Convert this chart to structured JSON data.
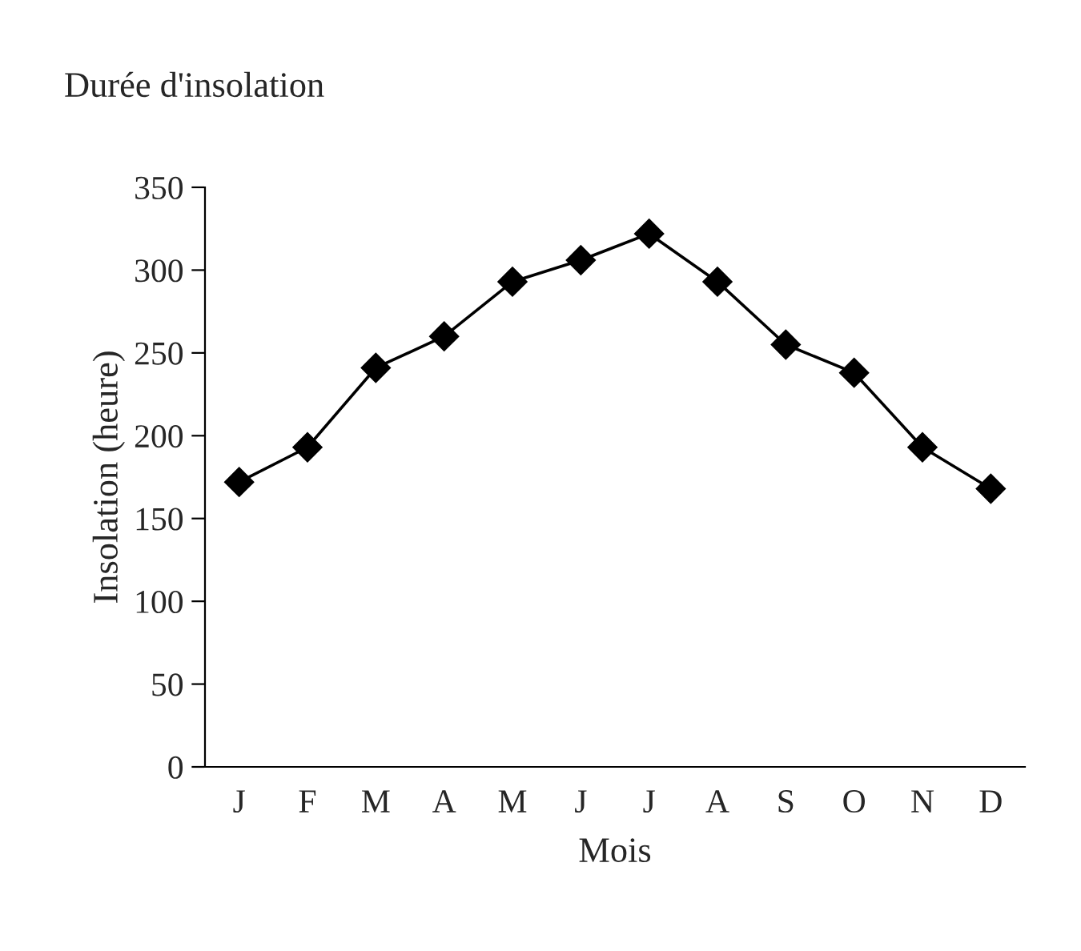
{
  "chart_data": {
    "type": "line",
    "title": "Durée d'insolation",
    "xlabel": "Mois",
    "ylabel": "Insolation (heure)",
    "categories": [
      "J",
      "F",
      "M",
      "A",
      "M",
      "J",
      "J",
      "A",
      "S",
      "O",
      "N",
      "D"
    ],
    "series": [
      {
        "color": "#000000",
        "values": [
          172,
          193,
          241,
          260,
          293,
          306,
          322,
          293,
          255,
          238,
          193,
          168
        ]
      }
    ],
    "ylim": [
      0,
      350
    ],
    "yticks": [
      0,
      50,
      100,
      150,
      200,
      250,
      300,
      350
    ],
    "grid": false,
    "legend": false,
    "marker": "diamond",
    "line_style": "solid"
  }
}
